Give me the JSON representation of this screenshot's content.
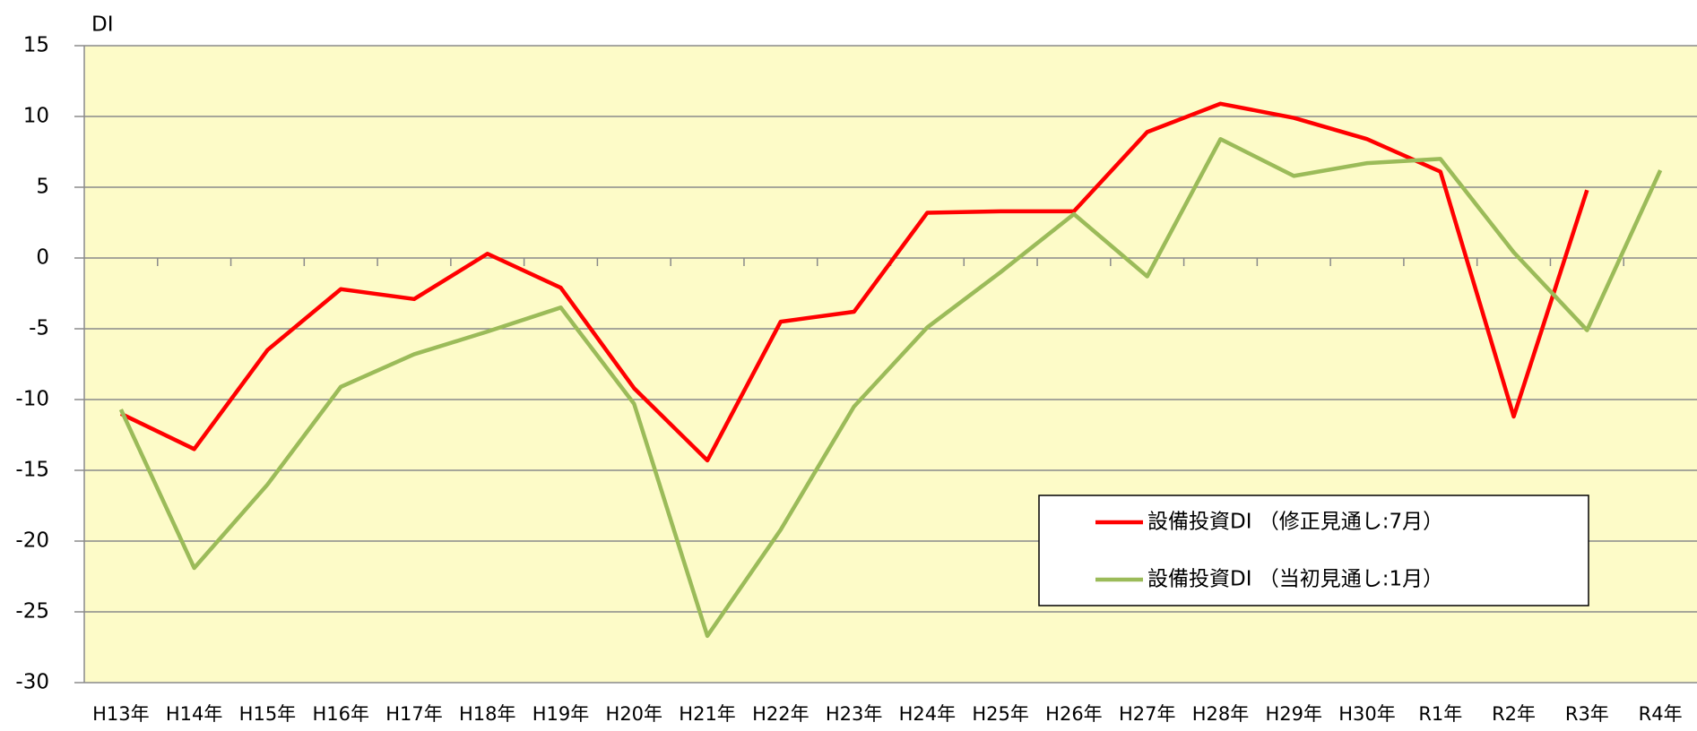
{
  "chart_data": {
    "type": "line",
    "y_label": "DI",
    "categories": [
      "H13年",
      "H14年",
      "H15年",
      "H16年",
      "H17年",
      "H18年",
      "H19年",
      "H20年",
      "H21年",
      "H22年",
      "H23年",
      "H24年",
      "H25年",
      "H26年",
      "H27年",
      "H28年",
      "H29年",
      "H30年",
      "R1年",
      "R2年",
      "R3年",
      "R4年"
    ],
    "series": [
      {
        "name": "設備投資DI （修正見通し:7月）",
        "color": "#ff0000",
        "values": [
          -11,
          -13.5,
          -6.5,
          -2.2,
          -2.9,
          0.3,
          -2.1,
          -9.2,
          -14.3,
          -4.5,
          -3.8,
          3.2,
          3.3,
          3.3,
          8.9,
          10.9,
          9.9,
          8.4,
          6.1,
          -11.2,
          4.8,
          null
        ]
      },
      {
        "name": "設備投資DI （当初見通し:1月）",
        "color": "#9bbb59",
        "values": [
          -10.7,
          -21.9,
          -16,
          -9.1,
          -6.8,
          -5.2,
          -3.5,
          -10.3,
          -26.7,
          -19.2,
          -10.5,
          -4.9,
          -1.0,
          3.1,
          -1.3,
          8.4,
          5.8,
          6.7,
          7.0,
          0.4,
          -5.1,
          6.2
        ]
      }
    ],
    "ylim": [
      -30,
      15
    ],
    "yticks": [
      -30,
      -25,
      -20,
      -15,
      -10,
      -5,
      0,
      5,
      10,
      15
    ],
    "grid": true,
    "legend": "lower right",
    "background": "#fdfbc8"
  }
}
